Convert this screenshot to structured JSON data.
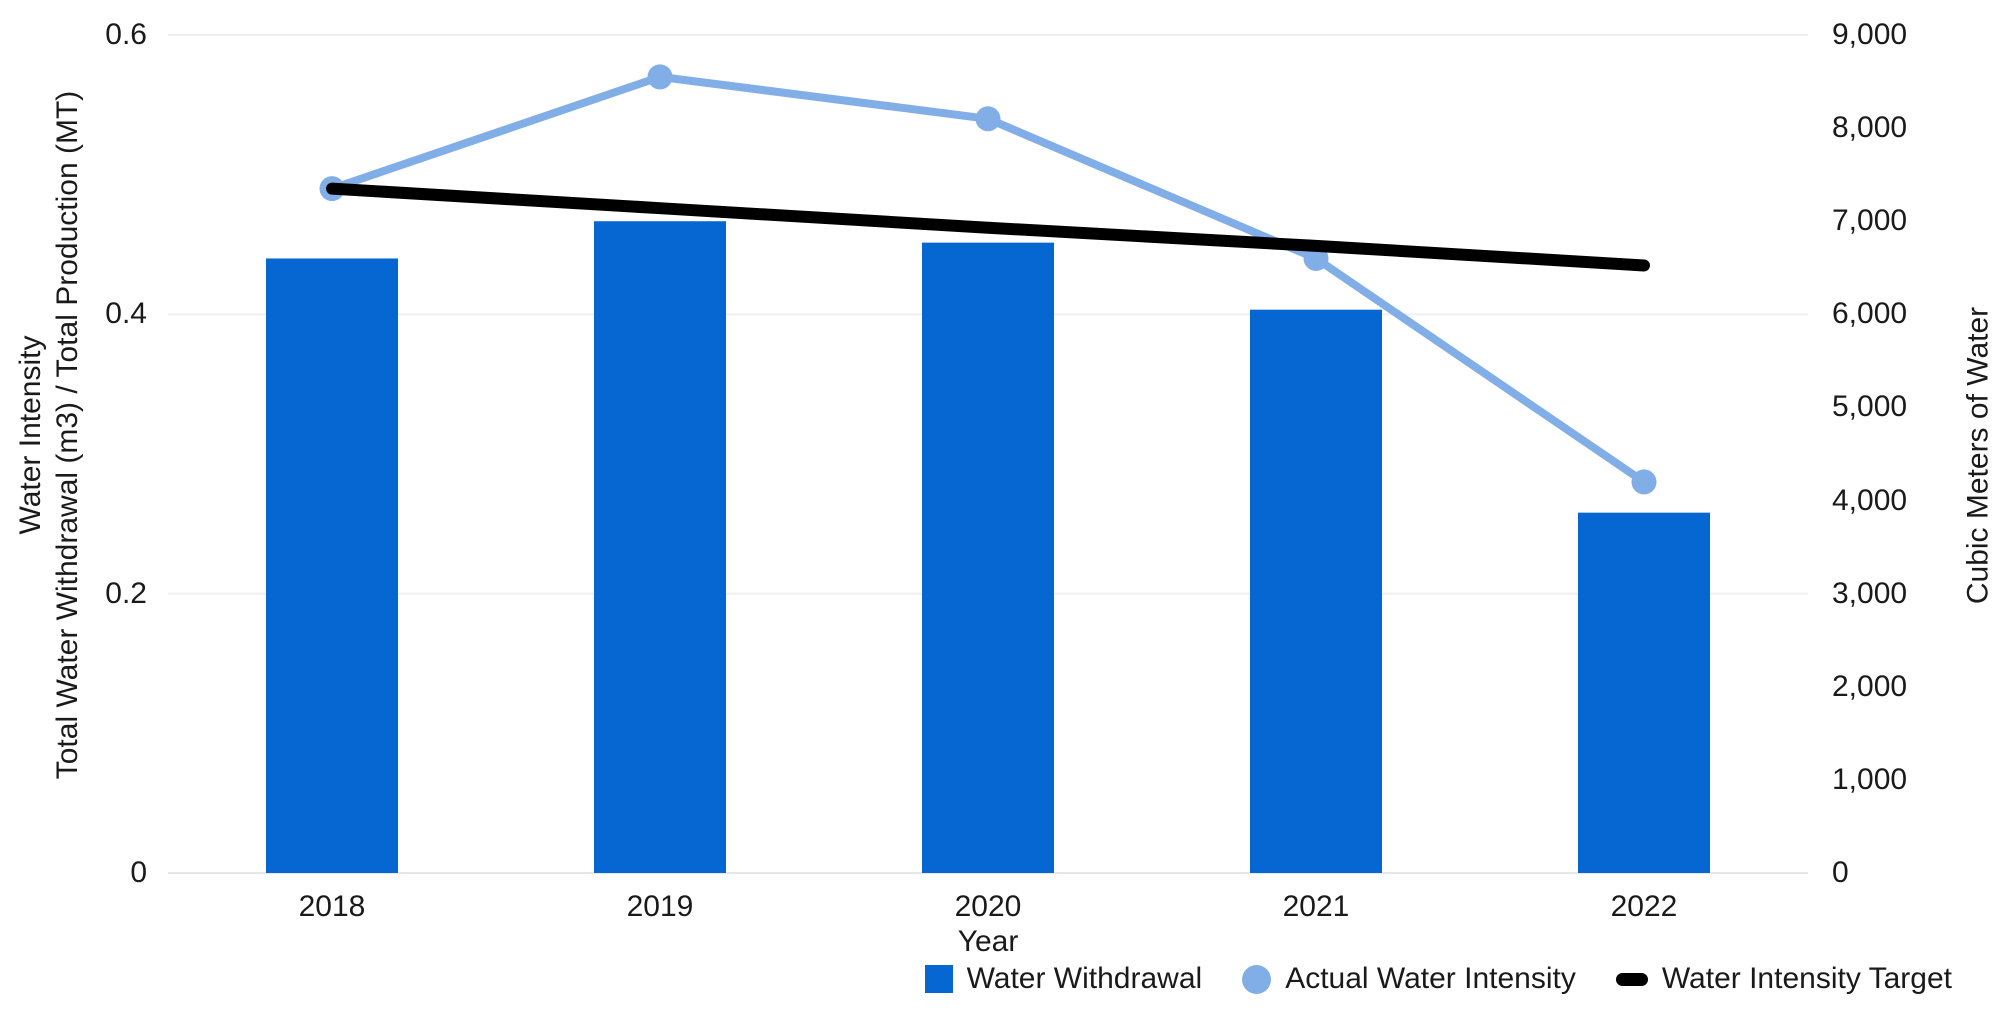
{
  "chart_data": {
    "type": "bar",
    "subtype": "dual-axis bar + line combo",
    "categories": [
      "2018",
      "2019",
      "2020",
      "2021",
      "2022"
    ],
    "series": [
      {
        "name": "Water Withdrawal",
        "type": "bar",
        "axis": "right",
        "values": [
          6600,
          7000,
          6770,
          6050,
          3870
        ]
      },
      {
        "name": "Actual Water Intensity",
        "type": "line",
        "axis": "left",
        "values": [
          0.49,
          0.57,
          0.54,
          0.44,
          0.28
        ]
      },
      {
        "name": "Water Intensity Target",
        "type": "line",
        "axis": "left",
        "values": [
          0.49,
          0.476,
          0.462,
          0.449,
          0.435
        ]
      }
    ],
    "xlabel": "Year",
    "left_axis": {
      "title_line1": "Water Intensity",
      "title_line2": "Total Water Withdrawal (m3) / Total Production (MT)",
      "max": 0.6,
      "ticks": [
        {
          "value": 0,
          "label": "0"
        },
        {
          "value": 0.2,
          "label": "0.2"
        },
        {
          "value": 0.4,
          "label": "0.4"
        },
        {
          "value": 0.6,
          "label": "0.6"
        }
      ]
    },
    "right_axis": {
      "title": "Cubic Meters of Water",
      "max": 9000,
      "ticks": [
        {
          "value": 0,
          "label": "0"
        },
        {
          "value": 1000,
          "label": "1,000"
        },
        {
          "value": 2000,
          "label": "2,000"
        },
        {
          "value": 3000,
          "label": "3,000"
        },
        {
          "value": 4000,
          "label": "4,000"
        },
        {
          "value": 5000,
          "label": "5,000"
        },
        {
          "value": 6000,
          "label": "6,000"
        },
        {
          "value": 7000,
          "label": "7,000"
        },
        {
          "value": 8000,
          "label": "8,000"
        },
        {
          "value": 9000,
          "label": "9,000"
        }
      ]
    },
    "legend": [
      {
        "label": "Water Withdrawal",
        "swatch": "square"
      },
      {
        "label": "Actual Water Intensity",
        "swatch": "circle"
      },
      {
        "label": "Water Intensity Target",
        "swatch": "pill"
      }
    ],
    "grid": "horizontal only",
    "legend_position": "bottom-right"
  },
  "colors": {
    "bar_blue": "#0667d2",
    "line_light_blue": "#82aee8",
    "target_black": "#000000",
    "gridline": "#efefef",
    "baseline": "#e6e6e6",
    "text": "#1a1a1a",
    "background": "#ffffff"
  }
}
